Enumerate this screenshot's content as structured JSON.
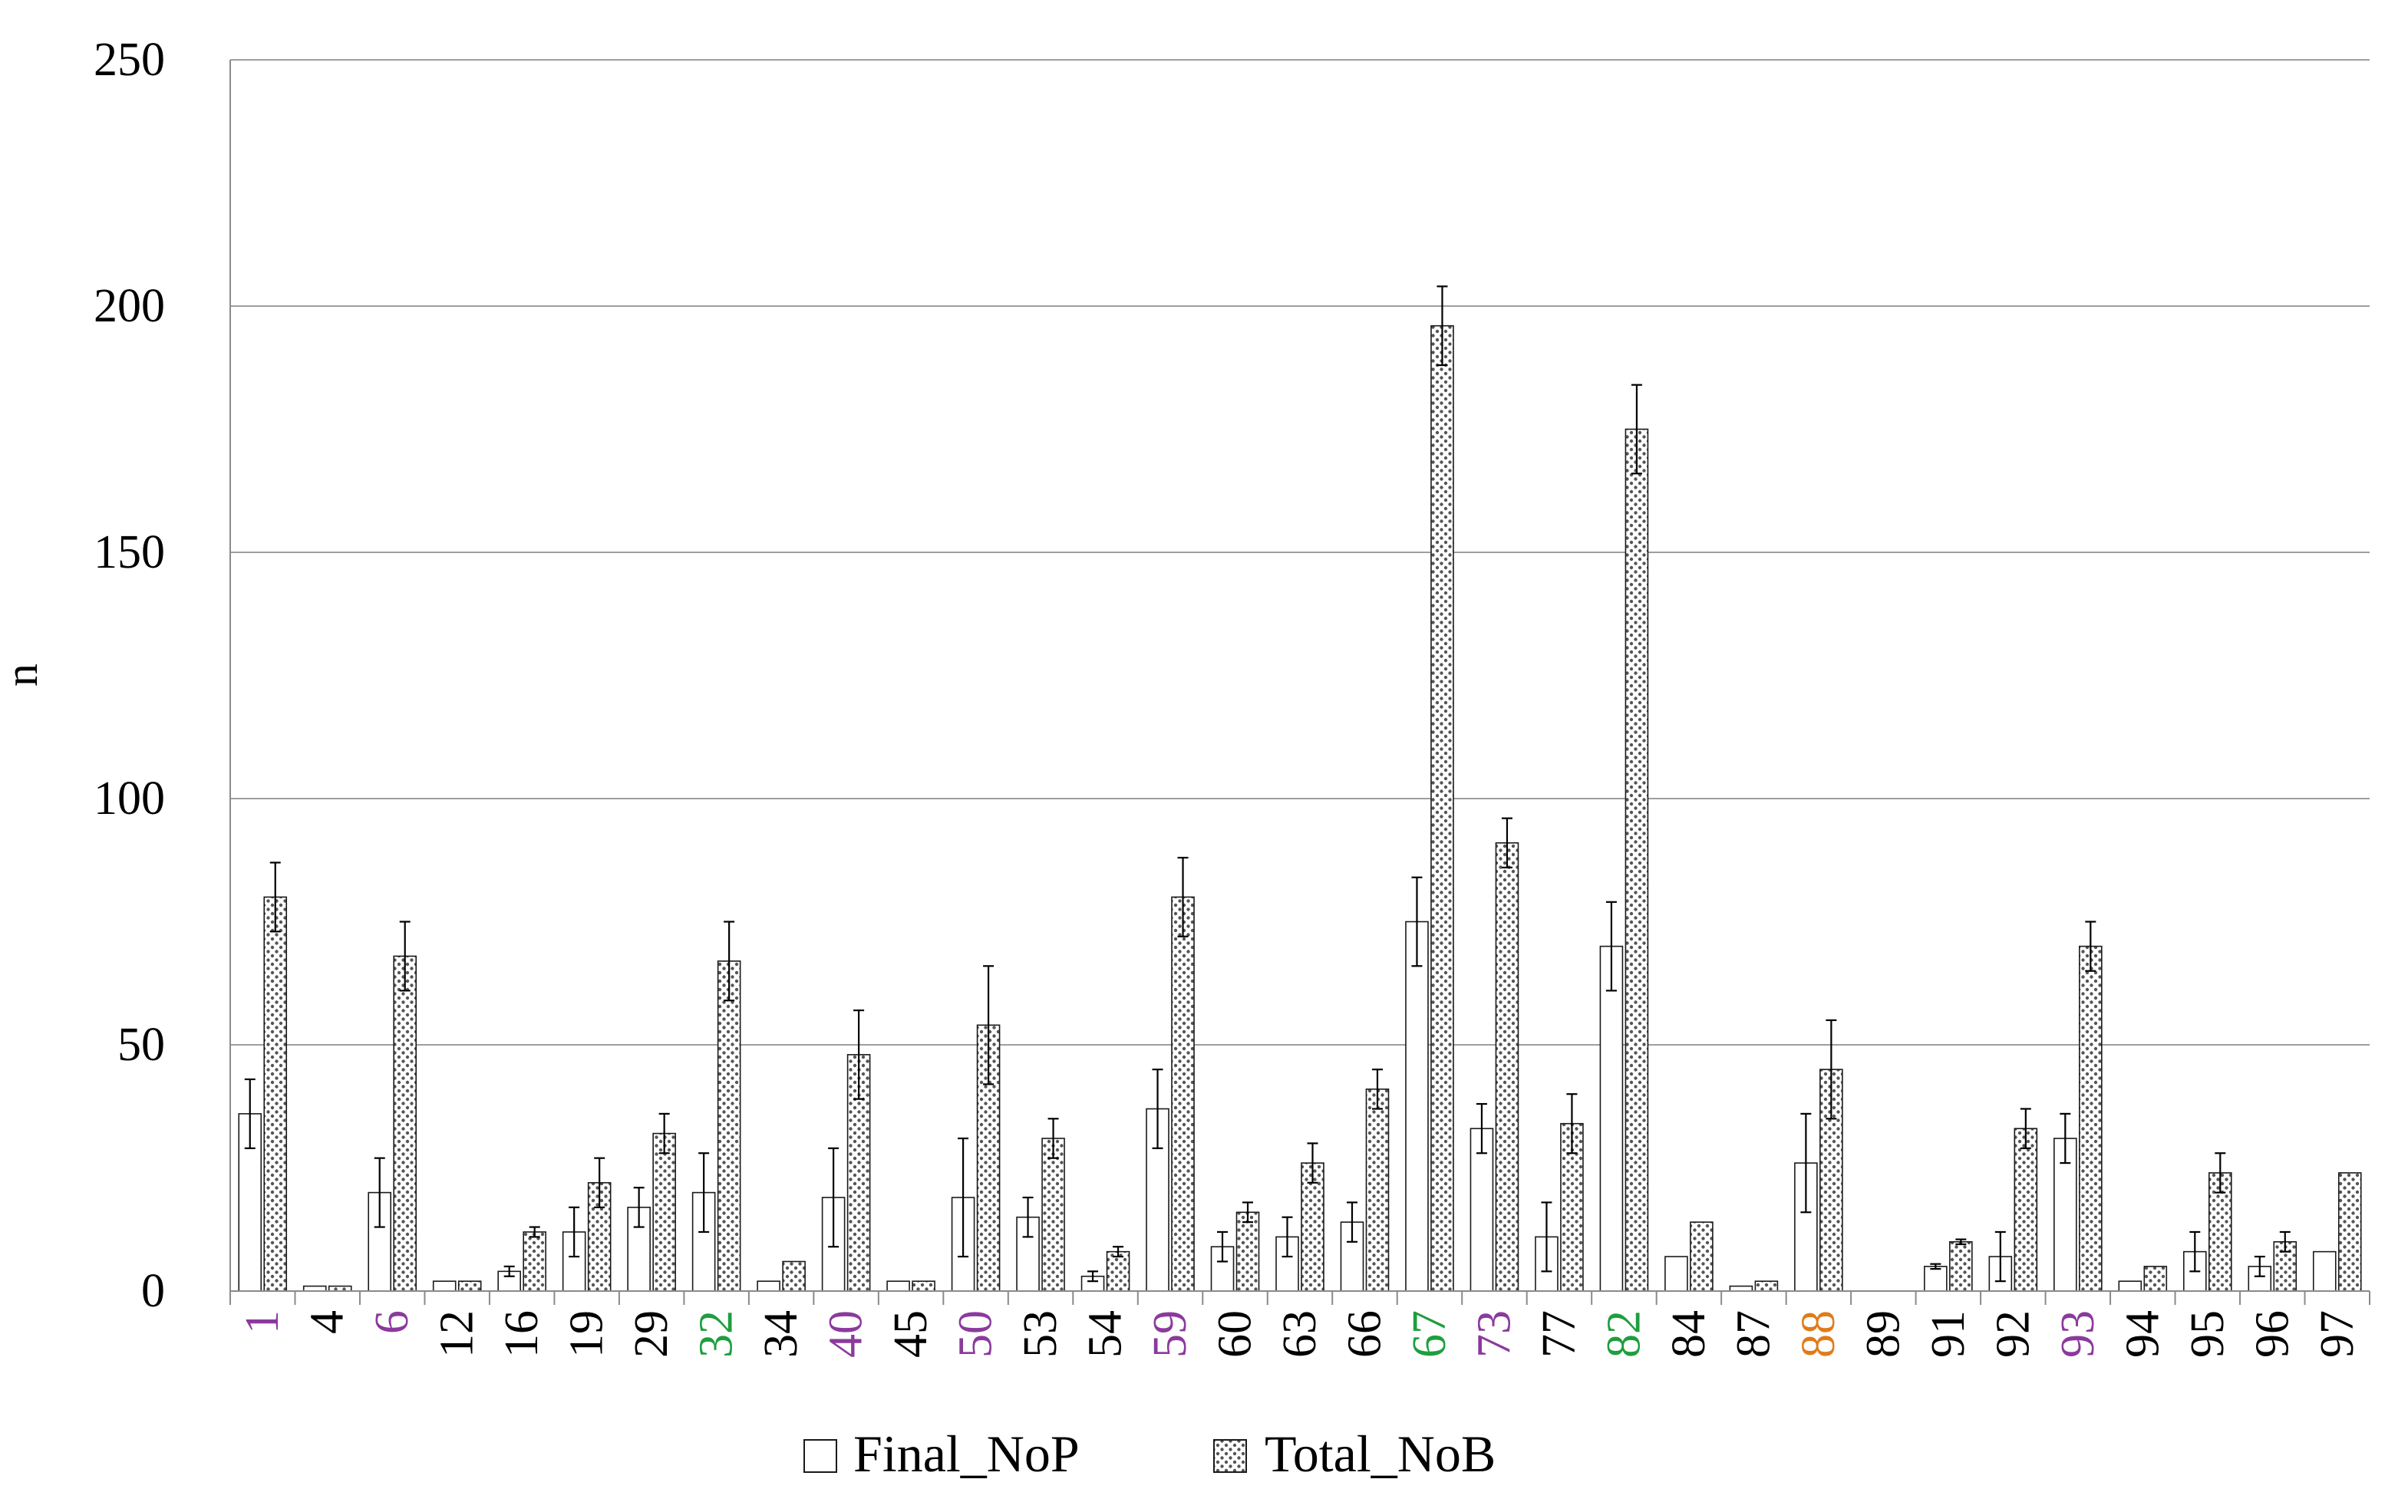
{
  "chart_data": {
    "type": "bar",
    "ylabel": "n",
    "xlabel": "",
    "ylim": [
      0,
      250
    ],
    "yticks": [
      0,
      50,
      100,
      150,
      200,
      250
    ],
    "grid": true,
    "legend_position": "bottom-center",
    "categories": [
      "1",
      "4",
      "6",
      "12",
      "16",
      "19",
      "29",
      "32",
      "34",
      "40",
      "45",
      "50",
      "53",
      "54",
      "59",
      "60",
      "63",
      "66",
      "67",
      "73",
      "77",
      "82",
      "84",
      "87",
      "88",
      "89",
      "91",
      "92",
      "93",
      "94",
      "95",
      "96",
      "97"
    ],
    "category_colors": [
      "#8B3A9C",
      "#000000",
      "#8B3A9C",
      "#000000",
      "#000000",
      "#000000",
      "#000000",
      "#1E9E3E",
      "#000000",
      "#8B3A9C",
      "#000000",
      "#8B3A9C",
      "#000000",
      "#000000",
      "#8B3A9C",
      "#000000",
      "#000000",
      "#000000",
      "#1E9E3E",
      "#8B3A9C",
      "#000000",
      "#1E9E3E",
      "#000000",
      "#000000",
      "#E07B1A",
      "#000000",
      "#000000",
      "#000000",
      "#8B3A9C",
      "#000000",
      "#000000",
      "#000000",
      "#000000"
    ],
    "series": [
      {
        "name": "Final_NoP",
        "pattern": "white",
        "values": [
          36,
          1,
          20,
          2,
          4,
          12,
          17,
          20,
          2,
          19,
          2,
          19,
          15,
          3,
          37,
          9,
          11,
          14,
          75,
          33,
          11,
          70,
          7,
          1,
          26,
          0,
          5,
          7,
          31,
          2,
          8,
          5,
          8
        ],
        "errors": [
          7,
          0,
          7,
          0,
          1,
          5,
          4,
          8,
          0,
          10,
          0,
          12,
          4,
          1,
          8,
          3,
          4,
          4,
          9,
          5,
          7,
          9,
          0,
          0,
          10,
          0,
          0.5,
          5,
          5,
          0,
          4,
          2,
          0
        ]
      },
      {
        "name": "Total_NoB",
        "pattern": "dotted",
        "values": [
          80,
          1,
          68,
          2,
          12,
          22,
          32,
          67,
          6,
          48,
          2,
          54,
          31,
          8,
          80,
          16,
          26,
          41,
          196,
          91,
          34,
          175,
          14,
          2,
          45,
          0,
          10,
          33,
          70,
          5,
          24,
          10,
          24
        ],
        "errors": [
          7,
          0,
          7,
          0,
          1,
          5,
          4,
          8,
          0,
          9,
          0,
          12,
          4,
          1,
          8,
          2,
          4,
          4,
          8,
          5,
          6,
          9,
          0,
          0,
          10,
          0,
          0.5,
          4,
          5,
          0,
          4,
          2,
          0
        ]
      }
    ]
  },
  "colors": {
    "grid": "#9e9e9e",
    "axis": "#8a8a8a",
    "bar_stroke": "#1a1a1a",
    "dot": "#555555"
  }
}
